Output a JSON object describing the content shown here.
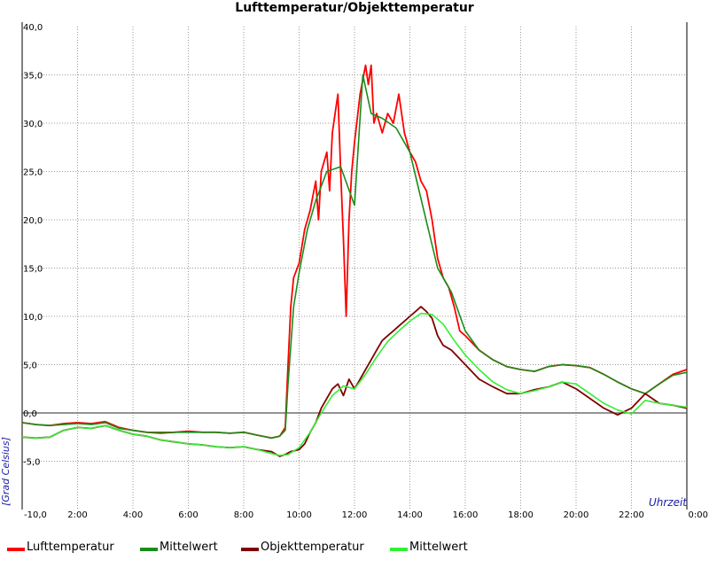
{
  "chart_data": {
    "type": "line",
    "title": "Lufttemperatur/Objekttemperatur",
    "xlabel": "Uhrzeit",
    "ylabel": "[Grad Celsius]",
    "xlim": [
      0,
      24
    ],
    "ylim": [
      -10,
      40
    ],
    "y_ticks": [
      {
        "value": -10,
        "label": "-10,0"
      },
      {
        "value": -5,
        "label": "-5,0"
      },
      {
        "value": 0,
        "label": "0,0"
      },
      {
        "value": 5,
        "label": "5,0"
      },
      {
        "value": 10,
        "label": "10,0"
      },
      {
        "value": 15,
        "label": "15,0"
      },
      {
        "value": 20,
        "label": "20,0"
      },
      {
        "value": 25,
        "label": "25,0"
      },
      {
        "value": 30,
        "label": "30,0"
      },
      {
        "value": 35,
        "label": "35,0"
      },
      {
        "value": 40,
        "label": "40,0"
      }
    ],
    "x_ticks": [
      {
        "value": 2,
        "label": "2:00"
      },
      {
        "value": 4,
        "label": "4:00"
      },
      {
        "value": 6,
        "label": "6:00"
      },
      {
        "value": 8,
        "label": "8:00"
      },
      {
        "value": 10,
        "label": "10:00"
      },
      {
        "value": 12,
        "label": "12:00"
      },
      {
        "value": 14,
        "label": "14:00"
      },
      {
        "value": 16,
        "label": "16:00"
      },
      {
        "value": 18,
        "label": "18:00"
      },
      {
        "value": 20,
        "label": "20:00"
      },
      {
        "value": 22,
        "label": "22:00"
      },
      {
        "value": 24,
        "label": "0:00"
      }
    ],
    "grid": true,
    "zero_line": true,
    "legend_position": "bottom",
    "series": [
      {
        "name": "Lufttemperatur",
        "color": "#ff0000",
        "x": [
          0,
          0.5,
          1,
          1.5,
          2,
          2.5,
          3,
          3.5,
          4,
          4.5,
          5,
          5.5,
          6,
          6.5,
          7,
          7.5,
          8,
          8.5,
          9,
          9.3,
          9.5,
          9.6,
          9.7,
          9.8,
          10,
          10.2,
          10.4,
          10.5,
          10.6,
          10.7,
          10.8,
          11,
          11.1,
          11.2,
          11.3,
          11.4,
          11.5,
          11.6,
          11.7,
          11.8,
          11.9,
          12,
          12.2,
          12.4,
          12.5,
          12.6,
          12.7,
          12.8,
          13,
          13.2,
          13.4,
          13.6,
          13.8,
          14,
          14.2,
          14.4,
          14.6,
          14.8,
          15,
          15.2,
          15.4,
          15.6,
          15.8,
          16,
          16.5,
          17,
          17.5,
          18,
          18.5,
          19,
          19.5,
          20,
          20.5,
          21,
          21.5,
          22,
          22.5,
          23,
          23.5,
          24
        ],
        "y": [
          -1,
          -1.2,
          -1.3,
          -1.1,
          -1,
          -1.1,
          -0.9,
          -1.5,
          -1.8,
          -2,
          -2.1,
          -2,
          -1.9,
          -2,
          -2,
          -2.1,
          -2,
          -2.3,
          -2.6,
          -2.4,
          -1.5,
          5,
          11,
          14,
          15.5,
          19,
          21,
          22.5,
          24,
          20,
          25,
          27,
          23,
          29,
          31,
          33,
          25,
          18,
          10,
          20,
          25,
          28,
          33,
          36,
          34,
          36,
          30,
          31,
          29,
          31,
          30,
          33,
          29,
          27,
          26,
          24,
          23,
          20,
          16,
          14,
          13,
          11,
          8.5,
          8,
          6.5,
          5.5,
          4.8,
          4.5,
          4.3,
          4.8,
          5,
          4.9,
          4.7,
          4,
          3.2,
          2.5,
          2,
          3,
          4,
          4.5
        ]
      },
      {
        "name": "Mittelwert",
        "color": "#1a8c1a",
        "x": [
          0,
          0.5,
          1,
          1.5,
          2,
          2.5,
          3,
          3.5,
          4,
          4.5,
          5,
          5.5,
          6,
          6.5,
          7,
          7.5,
          8,
          8.5,
          9,
          9.3,
          9.5,
          9.6,
          9.8,
          10,
          10.3,
          10.6,
          11,
          11.5,
          12,
          12.3,
          12.6,
          13,
          13.5,
          14,
          14.5,
          15,
          15.5,
          16,
          16.5,
          17,
          17.5,
          18,
          18.5,
          19,
          19.5,
          20,
          20.5,
          21,
          21.5,
          22,
          22.5,
          23,
          23.5,
          24
        ],
        "y": [
          -1,
          -1.2,
          -1.3,
          -1.2,
          -1.1,
          -1.2,
          -1,
          -1.6,
          -1.8,
          -2,
          -2,
          -2,
          -2,
          -2,
          -2,
          -2.1,
          -2,
          -2.3,
          -2.6,
          -2.4,
          -1.8,
          3,
          11,
          14.5,
          19,
          22,
          25,
          25.5,
          21.5,
          35,
          31,
          30.5,
          29.5,
          27,
          21,
          15,
          12.5,
          8.5,
          6.5,
          5.5,
          4.8,
          4.5,
          4.3,
          4.8,
          5,
          4.9,
          4.7,
          4,
          3.2,
          2.5,
          2,
          3,
          3.9,
          4.2
        ]
      },
      {
        "name": "Objekttemperatur",
        "color": "#800000",
        "x": [
          0,
          0.5,
          1,
          1.5,
          2,
          2.5,
          3,
          3.5,
          4,
          4.5,
          5,
          5.5,
          6,
          6.5,
          7,
          7.5,
          8,
          8.5,
          9,
          9.3,
          9.5,
          9.7,
          10,
          10.2,
          10.4,
          10.6,
          10.8,
          11,
          11.2,
          11.4,
          11.6,
          11.8,
          12,
          12.2,
          12.4,
          12.6,
          12.8,
          13,
          13.2,
          13.4,
          13.6,
          13.8,
          14,
          14.2,
          14.4,
          14.6,
          14.8,
          15,
          15.2,
          15.5,
          16,
          16.5,
          17,
          17.5,
          18,
          18.5,
          19,
          19.5,
          20,
          20.5,
          21,
          21.5,
          22,
          22.5,
          23,
          23.5,
          24
        ],
        "y": [
          -2.5,
          -2.6,
          -2.5,
          -1.8,
          -1.5,
          -1.6,
          -1.3,
          -1.8,
          -2.2,
          -2.4,
          -2.8,
          -3,
          -3.2,
          -3.3,
          -3.5,
          -3.6,
          -3.5,
          -3.8,
          -4,
          -4.5,
          -4.3,
          -4,
          -3.8,
          -3.2,
          -2,
          -1,
          0.5,
          1.5,
          2.5,
          3,
          1.8,
          3.5,
          2.5,
          3.5,
          4.5,
          5.5,
          6.5,
          7.5,
          8,
          8.5,
          9,
          9.5,
          10,
          10.5,
          11,
          10.5,
          9.8,
          8,
          7,
          6.5,
          5,
          3.5,
          2.7,
          2,
          2,
          2.4,
          2.7,
          3.2,
          2.5,
          1.5,
          0.5,
          -0.2,
          0.5,
          2,
          1,
          0.8,
          0.5
        ]
      },
      {
        "name": "Mittelwert",
        "color": "#33ee33",
        "x": [
          0,
          0.5,
          1,
          1.5,
          2,
          2.5,
          3,
          3.5,
          4,
          4.5,
          5,
          5.5,
          6,
          6.5,
          7,
          7.5,
          8,
          8.5,
          9,
          9.3,
          9.6,
          10,
          10.4,
          10.8,
          11.2,
          11.6,
          12,
          12.4,
          12.8,
          13.2,
          13.6,
          14,
          14.4,
          14.8,
          15.2,
          15.6,
          16,
          16.5,
          17,
          17.5,
          18,
          18.5,
          19,
          19.5,
          20,
          20.5,
          21,
          21.5,
          22,
          22.5,
          23,
          23.5,
          24
        ],
        "y": [
          -2.5,
          -2.6,
          -2.5,
          -1.8,
          -1.5,
          -1.6,
          -1.3,
          -1.8,
          -2.2,
          -2.4,
          -2.8,
          -3,
          -3.2,
          -3.3,
          -3.5,
          -3.6,
          -3.5,
          -3.8,
          -4.2,
          -4.4,
          -4.3,
          -3.6,
          -2,
          0,
          1.8,
          2.8,
          2.5,
          4,
          5.8,
          7.4,
          8.5,
          9.5,
          10.3,
          10.2,
          9.2,
          7.5,
          6,
          4.5,
          3.2,
          2.4,
          2,
          2.3,
          2.7,
          3.2,
          3,
          2,
          1,
          0.3,
          -0.1,
          1.3,
          1,
          0.8,
          0.6
        ]
      }
    ]
  }
}
